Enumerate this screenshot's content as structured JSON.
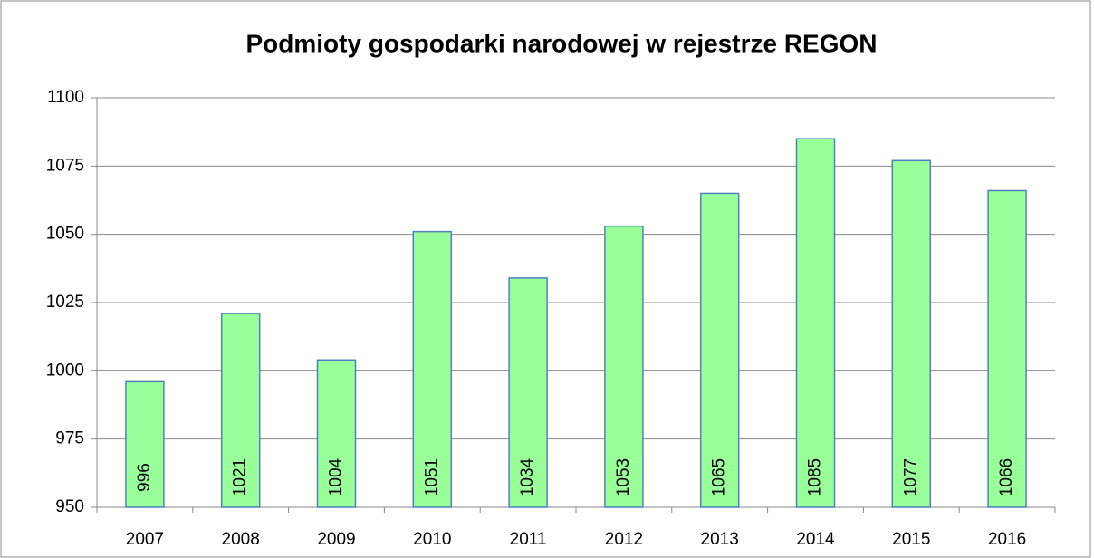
{
  "chart_data": {
    "type": "bar",
    "title": "Podmioty gospodarki narodowej w rejestrze REGON",
    "categories": [
      "2007",
      "2008",
      "2009",
      "2010",
      "2011",
      "2012",
      "2013",
      "2014",
      "2015",
      "2016"
    ],
    "values": [
      996,
      1021,
      1004,
      1051,
      1034,
      1053,
      1065,
      1085,
      1077,
      1066
    ],
    "color": "#99ff99",
    "ylim": [
      950,
      1100
    ],
    "yticks": [
      950,
      975,
      1000,
      1025,
      1050,
      1075,
      1100
    ],
    "grid": true
  }
}
